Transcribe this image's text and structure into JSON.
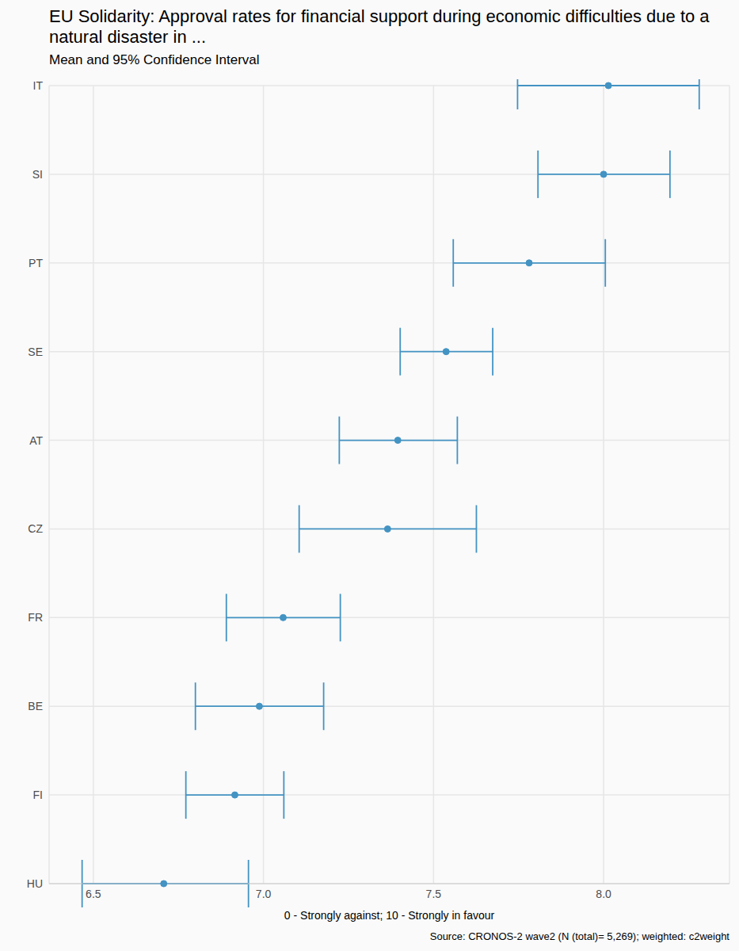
{
  "chart_data": {
    "type": "scatter",
    "title": "EU Solidarity: Approval rates for financial support during economic difficulties due to a natural disaster in ...",
    "subtitle": "Mean and 95% Confidence Interval",
    "x_label": "0 - Strongly against; 10 - Strongly in favour",
    "source": "Source: CRONOS-2 wave2 (N (total)= 5,269); weighted: c2weight",
    "categories": [
      "IT",
      "SI",
      "PT",
      "SE",
      "AT",
      "CZ",
      "FR",
      "BE",
      "FI",
      "HU"
    ],
    "values": [
      8.014,
      8.0,
      7.781,
      7.537,
      7.395,
      7.365,
      7.058,
      6.988,
      6.916,
      6.707
    ],
    "ci_low": [
      7.747,
      7.807,
      7.558,
      7.402,
      7.223,
      7.105,
      6.891,
      6.8,
      6.772,
      6.467
    ],
    "ci_high": [
      8.281,
      8.195,
      8.005,
      7.674,
      7.57,
      7.626,
      7.226,
      7.177,
      7.06,
      6.956
    ],
    "xlim": [
      6.37,
      8.37
    ],
    "xticks": [
      6.5,
      {
        "value": 7,
        "label": "7.0"
      },
      7.5,
      {
        "value": 8,
        "label": "8.0"
      }
    ],
    "color": "#4393c3",
    "grid": true,
    "marker": "circle"
  }
}
